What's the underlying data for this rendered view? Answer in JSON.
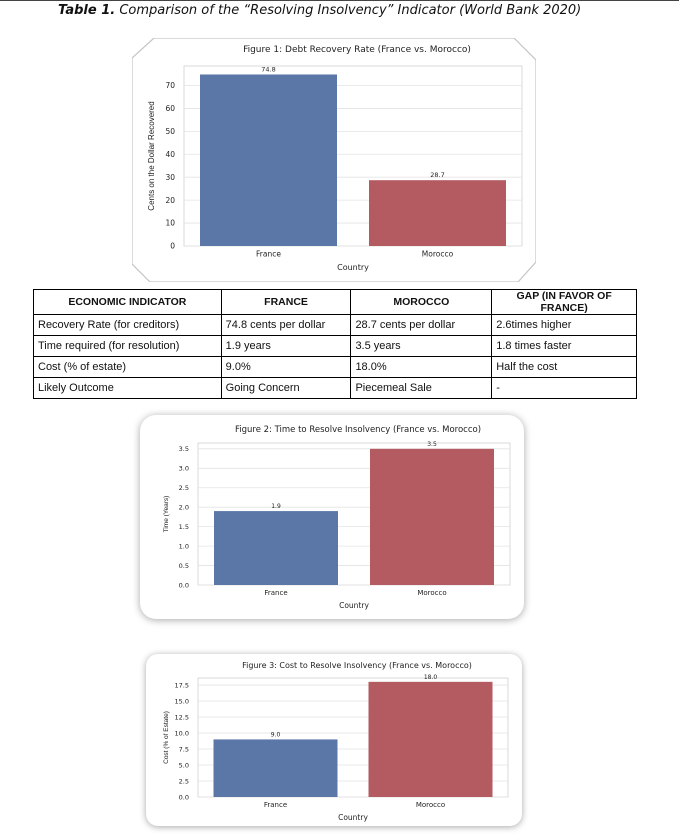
{
  "caption": {
    "label": "Table 1.",
    "text": "Comparison of the “Resolving Insolvency” Indicator (World Bank 2020)"
  },
  "colors": {
    "france": "#5b77a8",
    "morocco": "#b45b62",
    "grid": "#e3e3e3",
    "axis": "#999999"
  },
  "chart_data": [
    {
      "type": "bar",
      "title": "Figure 1: Debt Recovery Rate (France vs. Morocco)",
      "categories": [
        "France",
        "Morocco"
      ],
      "values": [
        74.8,
        28.7
      ],
      "value_labels": [
        "74.8",
        "28.7"
      ],
      "xlabel": "Country",
      "ylabel": "Cents on the Dollar Recovered",
      "ylim": [
        0,
        78.5
      ],
      "yticks": [
        0,
        10,
        20,
        30,
        40,
        50,
        60,
        70
      ],
      "ytick_labels": [
        "0",
        "10",
        "20",
        "30",
        "40",
        "50",
        "60",
        "70"
      ],
      "grid": true
    },
    {
      "type": "bar",
      "title": "Figure 2: Time to Resolve Insolvency (France vs. Morocco)",
      "categories": [
        "France",
        "Morocco"
      ],
      "values": [
        1.9,
        3.5
      ],
      "value_labels": [
        "1.9",
        "3.5"
      ],
      "xlabel": "Country",
      "ylabel": "Time (Years)",
      "ylim": [
        0,
        3.65
      ],
      "yticks": [
        0,
        0.5,
        1,
        1.5,
        2,
        2.5,
        3,
        3.5
      ],
      "ytick_labels": [
        "0.0",
        "0.5",
        "1.0",
        "1.5",
        "2.0",
        "2.5",
        "3.0",
        "3.5"
      ],
      "grid": true
    },
    {
      "type": "bar",
      "title": "Figure 3: Cost to Resolve Insolvency (France vs. Morocco)",
      "categories": [
        "France",
        "Morocco"
      ],
      "values": [
        9.0,
        18.0
      ],
      "value_labels": [
        "9.0",
        "18.0"
      ],
      "xlabel": "Country",
      "ylabel": "Cost (% of Estate)",
      "ylim": [
        0,
        18.6
      ],
      "yticks": [
        0,
        2.5,
        5,
        7.5,
        10,
        12.5,
        15,
        17.5
      ],
      "ytick_labels": [
        "0.0",
        "2.5",
        "5.0",
        "7.5",
        "10.0",
        "12.5",
        "15.0",
        "17.5"
      ],
      "grid": true
    }
  ],
  "table": {
    "headers": [
      "ECONOMIC INDICATOR",
      "FRANCE",
      "MOROCCO",
      "GAP (IN FAVOR OF FRANCE)"
    ],
    "rows": [
      [
        "Recovery Rate (for creditors)",
        "74.8 cents per dollar",
        "28.7 cents per dollar",
        "2.6times higher"
      ],
      [
        "Time required (for resolution)",
        "1.9 years",
        "3.5 years",
        "1.8 times faster"
      ],
      [
        "Cost (% of estate)",
        "9.0%",
        "18.0%",
        "Half the cost"
      ],
      [
        "Likely Outcome",
        "Going Concern",
        "Piecemeal Sale",
        "-"
      ]
    ]
  }
}
